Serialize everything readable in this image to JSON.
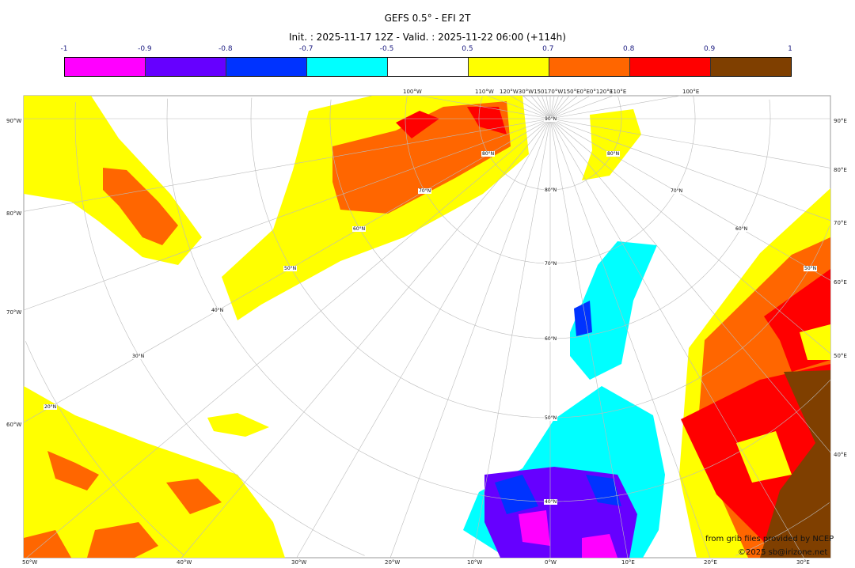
{
  "title": "GEFS 0.5° - EFI 2T",
  "subtitle": "Init. : 2025-11-17 12Z - Valid. : 2025-11-22 06:00 (+114h)",
  "colorbar": {
    "labels": [
      "-1",
      "-0.9",
      "-0.8",
      "-0.7",
      "-0.5",
      "0.5",
      "0.7",
      "0.8",
      "0.9",
      "1"
    ],
    "colors": [
      "#ff00ff",
      "#6600ff",
      "#0033ff",
      "#00ffff",
      "#ffffff",
      "#ffff00",
      "#ff6600",
      "#ff0000",
      "#7f3f00"
    ]
  },
  "axes": {
    "left": [
      "90°W",
      "80°W",
      "70°W",
      "60°W"
    ],
    "bottom": [
      "50°W",
      "40°W",
      "30°W",
      "20°W",
      "10°W",
      "0°W",
      "10°E",
      "20°E",
      "30°E"
    ],
    "right": [
      "90°E",
      "80°E",
      "70°E",
      "60°E",
      "50°E",
      "40°E"
    ],
    "top": [
      "100°W",
      "110°W",
      "120°W30°W150170°W150°E0°E0°120°E",
      "110°E",
      "100°E"
    ]
  },
  "lat_labels": [
    "90°N",
    "80°N",
    "80°N",
    "70°N",
    "80°N",
    "70°N",
    "60°N",
    "60°N",
    "70°N",
    "50°N",
    "50°N",
    "40°N",
    "60°N",
    "30°N",
    "20°N",
    "50°N",
    "40°N"
  ],
  "credits": {
    "source": "from grib files provided by NCEP",
    "copyright": "©2025 sb@irizone.net"
  }
}
